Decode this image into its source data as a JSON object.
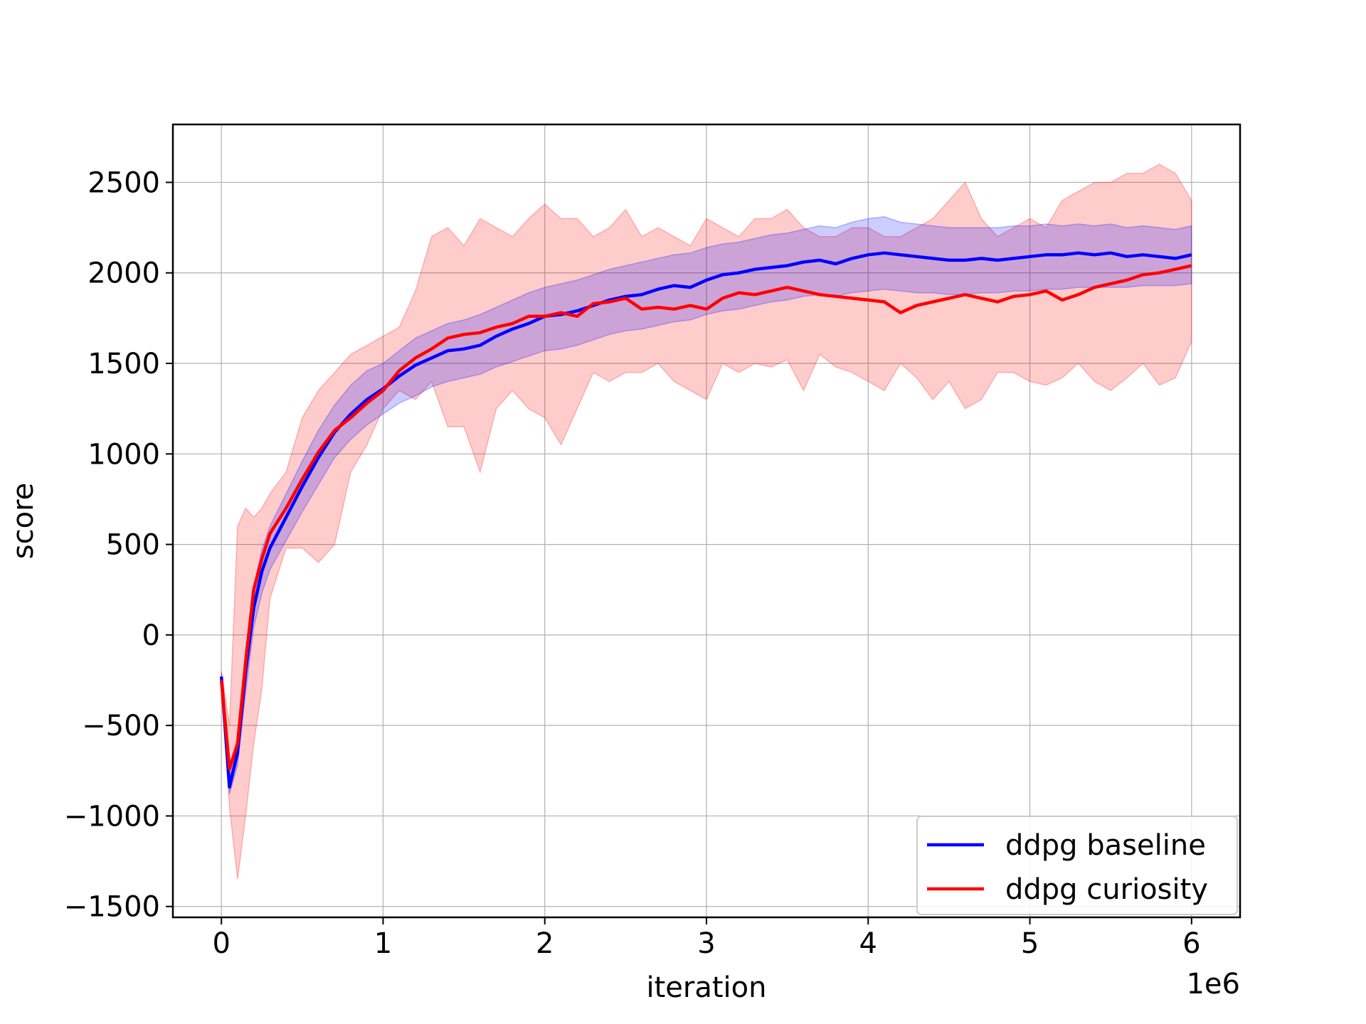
{
  "chart_data": {
    "type": "line",
    "title": "",
    "xlabel": "iteration",
    "ylabel": "score",
    "x_offset_label": "1e6",
    "xlim": [
      -0.3,
      6.3
    ],
    "ylim": [
      -1560,
      2820
    ],
    "x_ticks": [
      0,
      1,
      2,
      3,
      4,
      5,
      6
    ],
    "x_tick_labels": [
      "0",
      "1",
      "2",
      "3",
      "4",
      "5",
      "6"
    ],
    "y_ticks": [
      -1500,
      -1000,
      -500,
      0,
      500,
      1000,
      1500,
      2000,
      2500
    ],
    "y_tick_labels": [
      "−1500",
      "−1000",
      "−500",
      "0",
      "500",
      "1000",
      "1500",
      "2000",
      "2500"
    ],
    "grid": true,
    "legend_position": "bottom-right",
    "x": [
      0,
      0.05,
      0.1,
      0.15,
      0.2,
      0.25,
      0.3,
      0.4,
      0.5,
      0.6,
      0.7,
      0.8,
      0.9,
      1.0,
      1.1,
      1.2,
      1.3,
      1.4,
      1.5,
      1.6,
      1.7,
      1.8,
      1.9,
      2.0,
      2.1,
      2.2,
      2.3,
      2.4,
      2.5,
      2.6,
      2.7,
      2.8,
      2.9,
      3.0,
      3.1,
      3.2,
      3.3,
      3.4,
      3.5,
      3.6,
      3.7,
      3.8,
      3.9,
      4.0,
      4.1,
      4.2,
      4.3,
      4.4,
      4.5,
      4.6,
      4.7,
      4.8,
      4.9,
      5.0,
      5.1,
      5.2,
      5.3,
      5.4,
      5.5,
      5.6,
      5.7,
      5.8,
      5.9,
      6.0
    ],
    "series": [
      {
        "name": "ddpg baseline",
        "color": "#0000ff",
        "fill_color": "#0000ff",
        "values": [
          -230,
          -840,
          -650,
          -200,
          150,
          350,
          480,
          650,
          820,
          980,
          1120,
          1220,
          1300,
          1360,
          1430,
          1490,
          1530,
          1570,
          1580,
          1600,
          1650,
          1690,
          1720,
          1760,
          1770,
          1790,
          1820,
          1850,
          1870,
          1880,
          1910,
          1930,
          1920,
          1960,
          1990,
          2000,
          2020,
          2030,
          2040,
          2060,
          2070,
          2050,
          2080,
          2100,
          2110,
          2100,
          2090,
          2080,
          2070,
          2070,
          2080,
          2070,
          2080,
          2090,
          2100,
          2100,
          2110,
          2100,
          2110,
          2090,
          2100,
          2090,
          2080,
          2100
        ],
        "lower": [
          -250,
          -880,
          -720,
          -320,
          40,
          230,
          360,
          520,
          680,
          830,
          980,
          1080,
          1160,
          1220,
          1280,
          1320,
          1370,
          1400,
          1420,
          1440,
          1480,
          1510,
          1540,
          1570,
          1580,
          1600,
          1630,
          1660,
          1680,
          1690,
          1710,
          1730,
          1740,
          1770,
          1790,
          1800,
          1820,
          1840,
          1850,
          1870,
          1880,
          1870,
          1890,
          1900,
          1910,
          1900,
          1890,
          1890,
          1880,
          1880,
          1890,
          1890,
          1900,
          1900,
          1910,
          1910,
          1920,
          1920,
          1920,
          1920,
          1930,
          1930,
          1930,
          1940
        ],
        "upper": [
          -210,
          -790,
          -560,
          -80,
          270,
          470,
          600,
          780,
          960,
          1130,
          1270,
          1380,
          1460,
          1500,
          1570,
          1640,
          1680,
          1720,
          1740,
          1770,
          1810,
          1850,
          1890,
          1920,
          1940,
          1960,
          1990,
          2020,
          2040,
          2060,
          2080,
          2100,
          2110,
          2140,
          2160,
          2170,
          2190,
          2210,
          2220,
          2240,
          2260,
          2250,
          2280,
          2300,
          2310,
          2280,
          2270,
          2260,
          2250,
          2250,
          2250,
          2250,
          2260,
          2260,
          2270,
          2260,
          2270,
          2260,
          2270,
          2250,
          2260,
          2250,
          2240,
          2260
        ]
      },
      {
        "name": "ddpg curiosity",
        "color": "#ff0000",
        "fill_color": "#ff0000",
        "values": [
          -250,
          -740,
          -600,
          -150,
          250,
          420,
          560,
          700,
          860,
          1010,
          1130,
          1200,
          1280,
          1350,
          1460,
          1530,
          1580,
          1640,
          1660,
          1670,
          1700,
          1720,
          1760,
          1760,
          1780,
          1760,
          1830,
          1840,
          1860,
          1800,
          1810,
          1800,
          1820,
          1800,
          1860,
          1890,
          1880,
          1900,
          1920,
          1900,
          1880,
          1870,
          1860,
          1850,
          1840,
          1780,
          1820,
          1840,
          1860,
          1880,
          1860,
          1840,
          1870,
          1880,
          1900,
          1850,
          1880,
          1920,
          1940,
          1960,
          1990,
          2000,
          2020,
          2040
        ],
        "lower": [
          -280,
          -950,
          -1350,
          -1000,
          -600,
          -300,
          200,
          480,
          480,
          400,
          500,
          900,
          1050,
          1250,
          1350,
          1300,
          1400,
          1150,
          1150,
          900,
          1250,
          1350,
          1250,
          1200,
          1050,
          1250,
          1450,
          1400,
          1450,
          1450,
          1500,
          1400,
          1350,
          1300,
          1500,
          1450,
          1500,
          1480,
          1520,
          1350,
          1550,
          1480,
          1450,
          1400,
          1350,
          1500,
          1420,
          1300,
          1400,
          1250,
          1300,
          1450,
          1450,
          1400,
          1380,
          1420,
          1500,
          1400,
          1350,
          1420,
          1500,
          1380,
          1420,
          1620
        ],
        "upper": [
          -200,
          -500,
          600,
          700,
          650,
          700,
          780,
          900,
          1200,
          1350,
          1450,
          1550,
          1600,
          1650,
          1700,
          1900,
          2200,
          2250,
          2150,
          2300,
          2250,
          2200,
          2300,
          2380,
          2300,
          2300,
          2200,
          2250,
          2350,
          2200,
          2250,
          2200,
          2150,
          2300,
          2250,
          2200,
          2300,
          2300,
          2350,
          2250,
          2200,
          2200,
          2250,
          2250,
          2200,
          2200,
          2250,
          2300,
          2400,
          2500,
          2300,
          2200,
          2250,
          2300,
          2250,
          2400,
          2450,
          2500,
          2500,
          2550,
          2550,
          2600,
          2550,
          2400
        ]
      }
    ]
  }
}
